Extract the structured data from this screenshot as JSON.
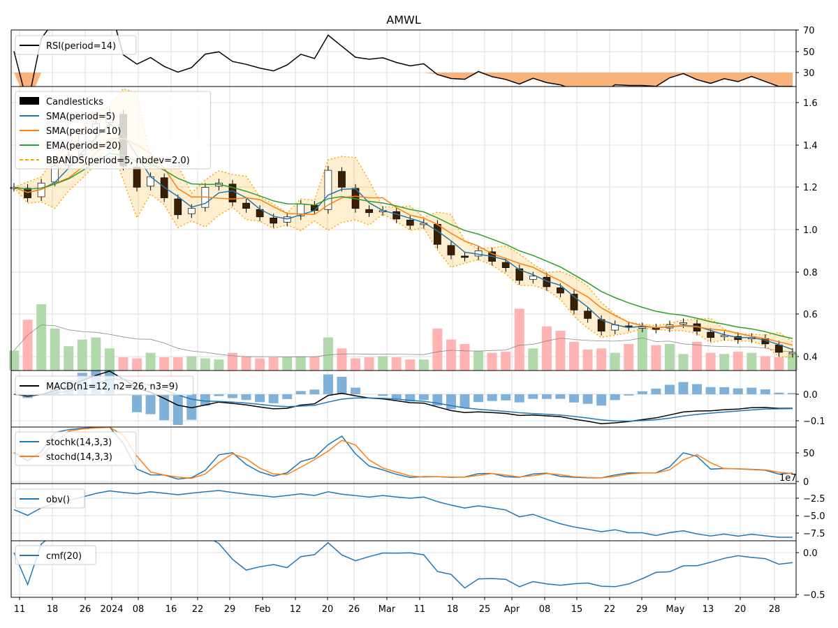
{
  "title": "AMWL",
  "chart_data": [
    {
      "type": "line",
      "panel": "rsi",
      "legend": [
        "RSI(period=14)"
      ],
      "yticks": [
        "30",
        "50",
        "70"
      ],
      "ylim": [
        17,
        70
      ]
    },
    {
      "type": "candlestick",
      "panel": "price",
      "legend": [
        "Candlesticks",
        "SMA(period=5)",
        "SMA(period=10)",
        "EMA(period=20)",
        "BBANDS(period=5, nbdev=2.0)"
      ],
      "yticks": [
        "0.4",
        "0.6",
        "0.8",
        "1.0",
        "1.2",
        "1.4",
        "1.6"
      ],
      "ylim": [
        0.34,
        1.67
      ],
      "close": [
        1.2,
        1.15,
        1.22,
        1.3,
        1.35,
        1.45,
        1.5,
        1.55,
        1.3,
        1.2,
        1.25,
        1.15,
        1.07,
        1.1,
        1.2,
        1.22,
        1.13,
        1.1,
        1.06,
        1.03,
        1.06,
        1.12,
        1.09,
        1.28,
        1.2,
        1.1,
        1.08,
        1.09,
        1.05,
        1.02,
        1.03,
        0.93,
        0.88,
        0.87,
        0.9,
        0.85,
        0.82,
        0.76,
        0.78,
        0.73,
        0.7,
        0.62,
        0.58,
        0.52,
        0.55,
        0.54,
        0.54,
        0.53,
        0.55,
        0.56,
        0.52,
        0.49,
        0.5,
        0.48,
        0.49,
        0.46,
        0.42,
        0.42
      ],
      "volume": [
        1.8,
        4.6,
        6.0,
        3.8,
        2.2,
        2.8,
        3.0,
        2.0,
        1.2,
        1.1,
        1.6,
        1.2,
        1.2,
        1.3,
        1.1,
        1.0,
        1.6,
        1.3,
        1.1,
        1.2,
        1.2,
        1.3,
        1.3,
        3.0,
        2.0,
        1.1,
        1.2,
        1.3,
        1.2,
        1.0,
        1.0,
        3.8,
        2.8,
        2.4,
        1.8,
        1.6,
        1.7,
        5.6,
        2.0,
        4.0,
        3.6,
        2.6,
        1.9,
        2.0,
        1.6,
        2.4,
        3.8,
        2.3,
        2.4,
        1.5,
        2.6,
        1.6,
        1.5,
        1.7,
        1.6,
        1.3,
        1.2,
        1.5
      ]
    },
    {
      "type": "line",
      "panel": "macd",
      "legend": [
        "MACD(n1=12, n2=26, n3=9)"
      ],
      "yticks": [
        "0.0",
        "−0.1"
      ]
    },
    {
      "type": "line",
      "panel": "stoch",
      "legend": [
        "stochk(14,3,3)",
        "stochd(14,3,3)"
      ],
      "yticks": [
        "0",
        "50"
      ],
      "offset_label": "1e7"
    },
    {
      "type": "line",
      "panel": "obv",
      "legend": [
        "obv()"
      ],
      "yticks": [
        "−2.5",
        "−5.0",
        "−7.5"
      ]
    },
    {
      "type": "line",
      "panel": "cmf",
      "legend": [
        "cmf(20)"
      ],
      "yticks": [
        "0.0",
        "−0.5"
      ]
    }
  ],
  "xticks": [
    "11",
    "18",
    "26",
    "2024",
    "08",
    "16",
    "22",
    "29",
    "Feb",
    "12",
    "20",
    "26",
    "Mar",
    "11",
    "18",
    "25",
    "Apr",
    "08",
    "15",
    "22",
    "29",
    "May",
    "13",
    "20",
    "28"
  ],
  "colors": {
    "sma5": "#1f77b4",
    "sma10": "#ff7f0e",
    "ema20": "#2ca02c",
    "bb": "#ffa500",
    "down": "#3b1f00",
    "volUp": "#a8d5a2",
    "volDown": "#ffabab",
    "macdHist": "#7fb1d9",
    "rsiFill": "#f9b27a"
  }
}
